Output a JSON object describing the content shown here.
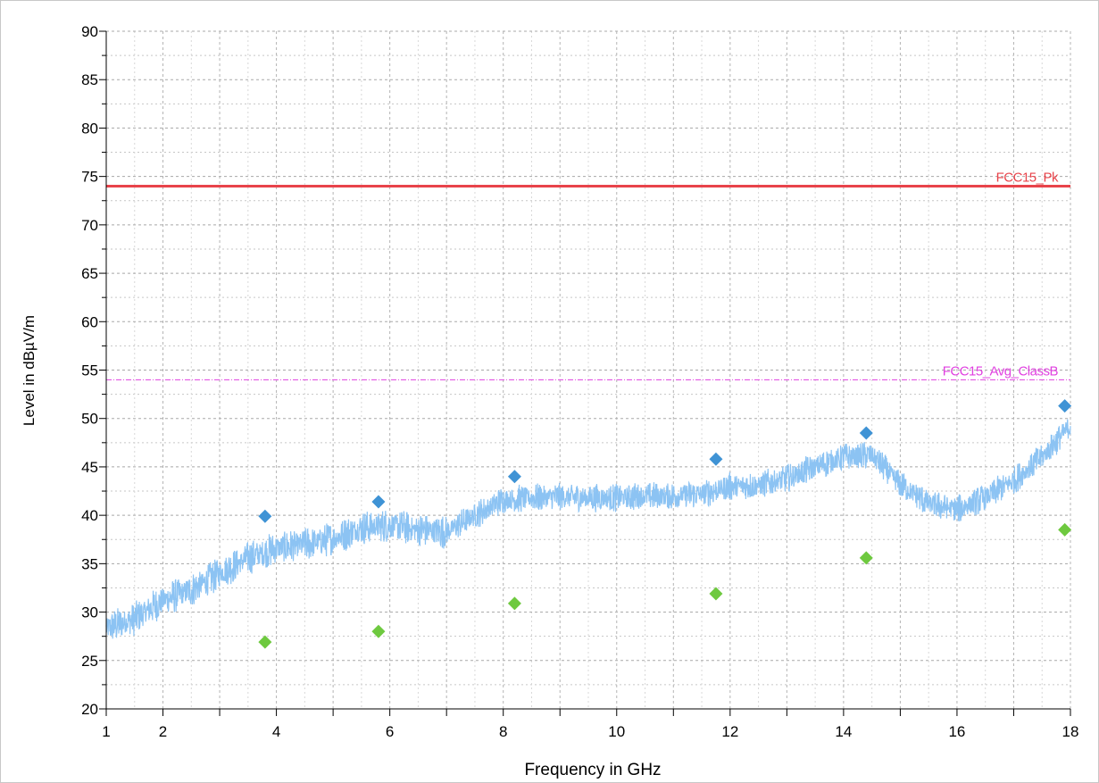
{
  "chart_data": {
    "type": "line",
    "title": "",
    "xlabel": "Frequency in GHz",
    "ylabel": "Level in dBµV/m",
    "xlim": [
      1,
      18
    ],
    "ylim": [
      20,
      90
    ],
    "x_ticks": [
      1,
      2,
      4,
      6,
      8,
      10,
      12,
      14,
      16,
      18
    ],
    "y_ticks": [
      20,
      25,
      30,
      35,
      40,
      45,
      50,
      55,
      60,
      65,
      70,
      75,
      80,
      85,
      90
    ],
    "grid": true,
    "legend": "none",
    "limit_lines": [
      {
        "name": "FCC15_Pk",
        "y": 74,
        "color": "#e8434a",
        "style": "solid"
      },
      {
        "name": "FCC15_Avg_ClassB",
        "y": 54,
        "color": "#e040e0",
        "style": "dashdot"
      }
    ],
    "trace": {
      "color": "#8cc3f3",
      "envelope": [
        [
          1.0,
          28.3
        ],
        [
          1.5,
          29.3
        ],
        [
          2.0,
          31.2
        ],
        [
          2.5,
          32.3
        ],
        [
          3.0,
          34.0
        ],
        [
          3.5,
          35.6
        ],
        [
          4.0,
          36.6
        ],
        [
          4.5,
          37.0
        ],
        [
          5.0,
          37.6
        ],
        [
          5.5,
          38.7
        ],
        [
          6.0,
          39.0
        ],
        [
          6.5,
          38.5
        ],
        [
          7.0,
          38.3
        ],
        [
          7.5,
          40.0
        ],
        [
          8.0,
          41.6
        ],
        [
          8.5,
          41.8
        ],
        [
          9.0,
          41.9
        ],
        [
          9.5,
          41.8
        ],
        [
          10.0,
          41.8
        ],
        [
          10.5,
          42.0
        ],
        [
          11.0,
          42.0
        ],
        [
          11.5,
          42.2
        ],
        [
          12.0,
          43.0
        ],
        [
          12.5,
          43.1
        ],
        [
          13.0,
          43.8
        ],
        [
          13.5,
          45.0
        ],
        [
          14.0,
          46.0
        ],
        [
          14.5,
          46.2
        ],
        [
          15.0,
          43.2
        ],
        [
          15.5,
          41.2
        ],
        [
          16.0,
          40.6
        ],
        [
          16.5,
          41.8
        ],
        [
          17.0,
          43.6
        ],
        [
          17.5,
          46.0
        ],
        [
          18.0,
          49.3
        ]
      ]
    },
    "peak_points": {
      "color": "#3f93d5",
      "points": [
        [
          3.8,
          39.9
        ],
        [
          5.8,
          41.4
        ],
        [
          8.2,
          44.0
        ],
        [
          11.75,
          45.8
        ],
        [
          14.4,
          48.5
        ],
        [
          17.9,
          51.3
        ]
      ]
    },
    "average_points": {
      "color": "#6ec93f",
      "points": [
        [
          3.8,
          26.9
        ],
        [
          5.8,
          28.0
        ],
        [
          8.2,
          30.9
        ],
        [
          11.75,
          31.9
        ],
        [
          14.4,
          35.6
        ],
        [
          17.9,
          38.5
        ]
      ]
    }
  }
}
